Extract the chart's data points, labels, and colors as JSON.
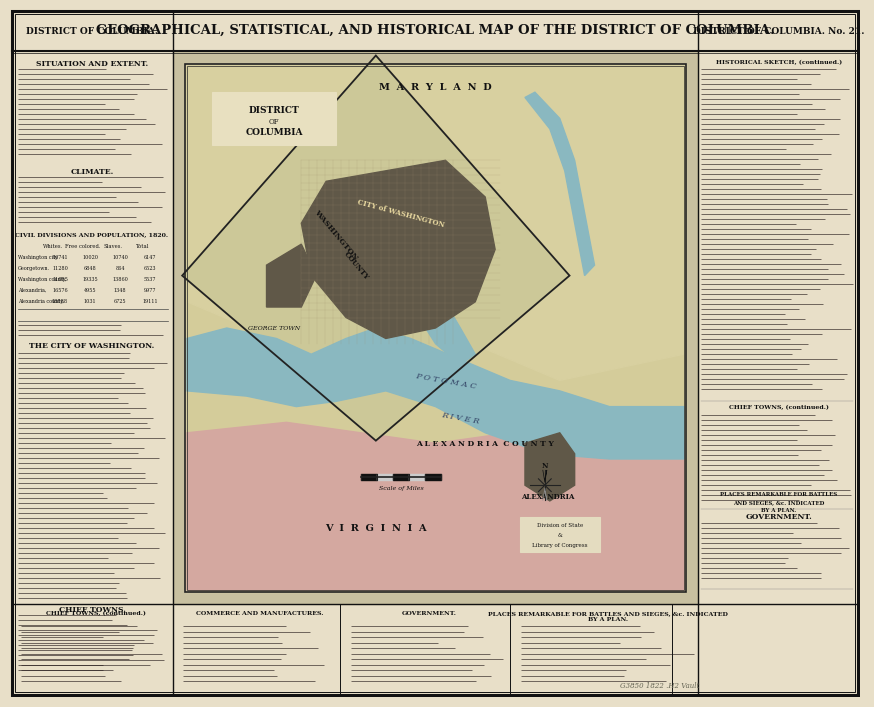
{
  "title_center": "GEOGRAPHICAL, STATISTICAL, AND HISTORICAL MAP OF THE DISTRICT OF COLUMBIA.",
  "title_left": "DISTRICT OF COLUMBIA.",
  "title_right": "DISTRICT OF COLUMBIA. No. 21.",
  "bg_color": "#e8dfc8",
  "border_color": "#1a1a1a",
  "map_inner_bg": "#d8cfa0",
  "water_color": "#7aaab8",
  "land_color": "#cfc690",
  "city_color": "#5a5040",
  "pink_border": "#c8a090",
  "figsize": [
    8.5,
    6.88
  ],
  "dpi": 100
}
